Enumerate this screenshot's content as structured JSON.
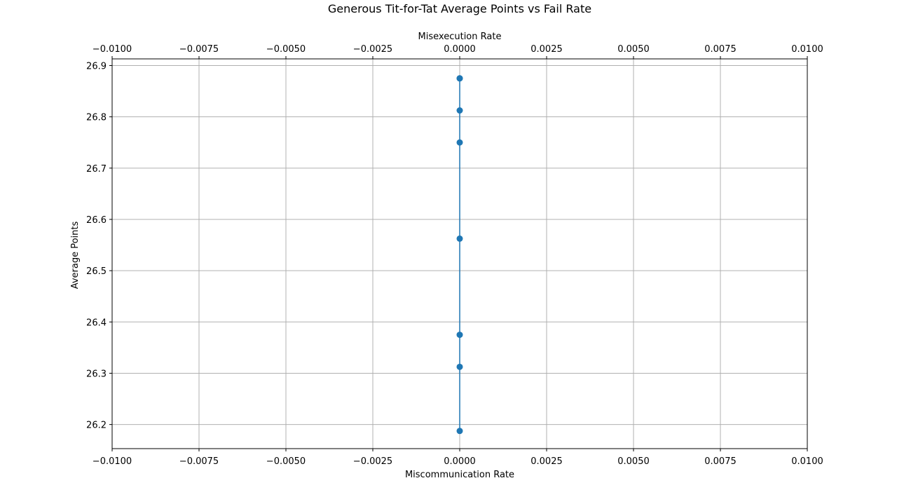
{
  "chart_data": {
    "type": "line",
    "title": "Generous Tit-for-Tat Average Points vs Fail Rate",
    "xlabel": "Miscommunication Rate",
    "x2label": "Misexecution Rate",
    "ylabel": "Average Points",
    "xlim": [
      -0.01,
      0.01
    ],
    "x2lim": [
      -0.01,
      0.01
    ],
    "ylim": [
      26.153,
      26.913
    ],
    "xticks": [
      "−0.0100",
      "−0.0075",
      "−0.0050",
      "−0.0025",
      "0.0000",
      "0.0025",
      "0.0050",
      "0.0075",
      "0.0100"
    ],
    "x2ticks": [
      "−0.0100",
      "−0.0075",
      "−0.0050",
      "−0.0025",
      "0.0000",
      "0.0025",
      "0.0050",
      "0.0075",
      "0.0100"
    ],
    "yticks": [
      "26.2",
      "26.3",
      "26.4",
      "26.5",
      "26.6",
      "26.7",
      "26.8",
      "26.9"
    ],
    "grid": true,
    "series": [
      {
        "x": [
          0,
          0,
          0,
          0,
          0,
          0,
          0,
          0
        ],
        "y": [
          26.875,
          26.8125,
          26.75,
          26.5625,
          26.375,
          26.3125,
          26.1875,
          26.875
        ],
        "color": "#1f77b4",
        "marker": "circle"
      }
    ]
  }
}
